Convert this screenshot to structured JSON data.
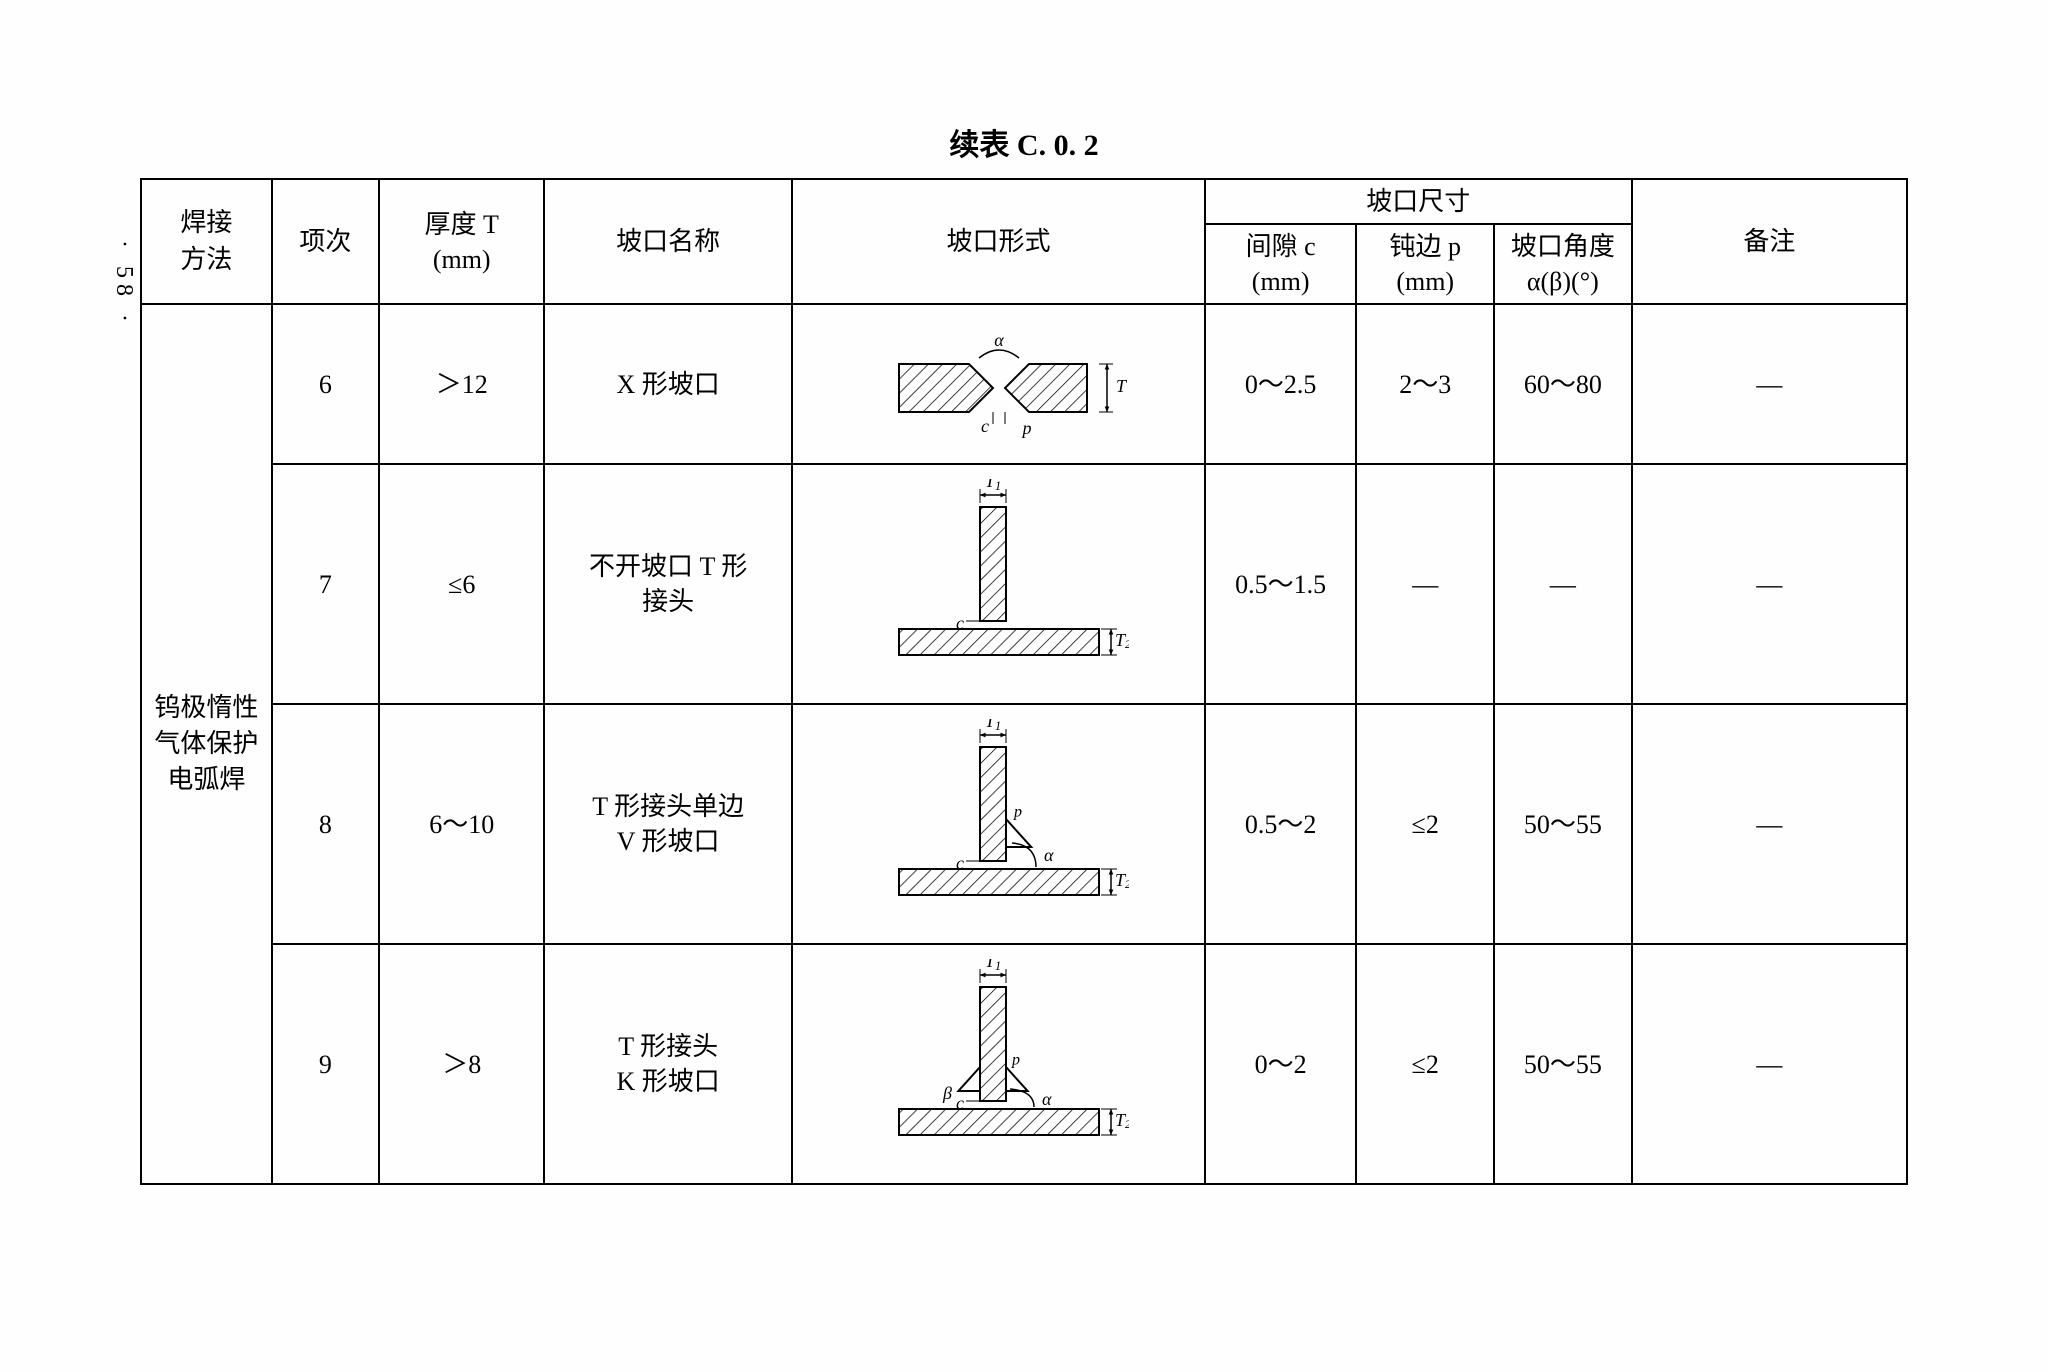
{
  "page_number_marker": "· 58 ·",
  "table_title": "续表 C. 0. 2",
  "headers": {
    "method": "焊接\n方法",
    "item": "项次",
    "thickness": "厚度 T\n(mm)",
    "groove_name": "坡口名称",
    "groove_form": "坡口形式",
    "groove_dim": "坡口尺寸",
    "gap": "间隙 c\n(mm)",
    "blunt": "钝边 p\n(mm)",
    "angle": "坡口角度\nα(β)(°)",
    "remark": "备注"
  },
  "method_cell": "钨极惰性\n气体保护\n电弧焊",
  "rows": [
    {
      "item": "6",
      "thickness": "＞12",
      "groove_name": "X 形坡口",
      "diagram_type": "x_groove",
      "gap": "0～2.5",
      "blunt": "2～3",
      "angle": "60～80",
      "remark": "—"
    },
    {
      "item": "7",
      "thickness": "≤6",
      "groove_name": "不开坡口 T 形\n接头",
      "diagram_type": "t_nogroove",
      "gap": "0.5～1.5",
      "blunt": "—",
      "angle": "—",
      "remark": "—"
    },
    {
      "item": "8",
      "thickness": "6～10",
      "groove_name": "T 形接头单边\nV 形坡口",
      "diagram_type": "t_single_v",
      "gap": "0.5～2",
      "blunt": "≤2",
      "angle": "50～55",
      "remark": "—"
    },
    {
      "item": "9",
      "thickness": "＞8",
      "groove_name": "T 形接头\nK 形坡口",
      "diagram_type": "t_k_groove",
      "gap": "0～2",
      "blunt": "≤2",
      "angle": "50～55",
      "remark": "—"
    }
  ],
  "diagram_style": {
    "stroke": "#000000",
    "stroke_width": 2,
    "hatch_spacing": 10,
    "font_size": 18,
    "font_family": "Times New Roman, serif"
  }
}
